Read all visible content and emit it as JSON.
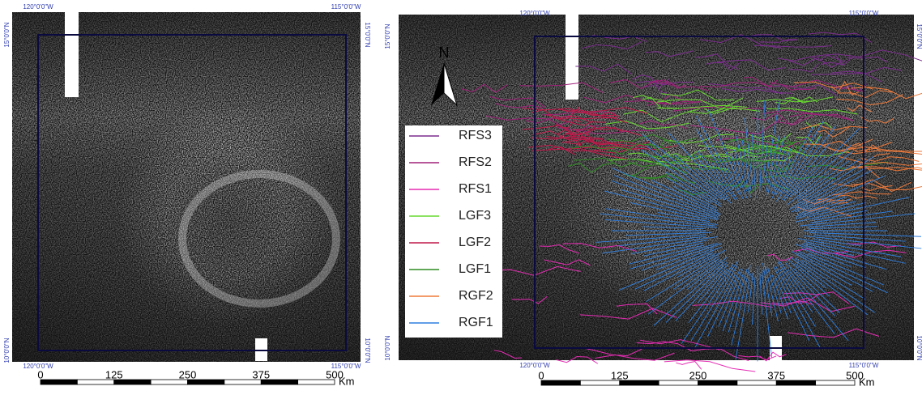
{
  "panels": [
    {
      "graticule": {
        "top": [
          "120°0'0\"W",
          "115°0'0\"W"
        ],
        "bottom": [
          "120°0'0\"W",
          "115°0'0\"W"
        ],
        "left": [
          "15°0'0\"N",
          "10°0'0\"N"
        ],
        "right": [
          "15°0'0\"N",
          "10°0'0\"N"
        ]
      },
      "scale_bar": {
        "ticks": [
          0,
          125,
          250,
          375,
          500
        ],
        "unit": "Km"
      }
    },
    {
      "graticule": {
        "top": [
          "120°0'0\"W",
          "115°0'0\"W"
        ],
        "bottom": [
          "120°0'0\"W",
          "115°0'0\"W"
        ],
        "left": [
          "15°0'0\"N",
          "10°0'0\"N"
        ],
        "right": [
          "15°0'0\"N",
          "10°0'0\"N"
        ]
      },
      "scale_bar": {
        "ticks": [
          0,
          125,
          250,
          375,
          500
        ],
        "unit": "Km"
      },
      "north_arrow": "N",
      "legend": [
        {
          "name": "RFS3",
          "color": "#7b2d8e"
        },
        {
          "name": "RFS2",
          "color": "#a0207a"
        },
        {
          "name": "RFS1",
          "color": "#e62cb4"
        },
        {
          "name": "LGF3",
          "color": "#66d92e"
        },
        {
          "name": "LGF2",
          "color": "#c0184a"
        },
        {
          "name": "LGF1",
          "color": "#2e8b22"
        },
        {
          "name": "RGF2",
          "color": "#f07a3a"
        },
        {
          "name": "RGF1",
          "color": "#2f7fe0"
        }
      ]
    }
  ]
}
